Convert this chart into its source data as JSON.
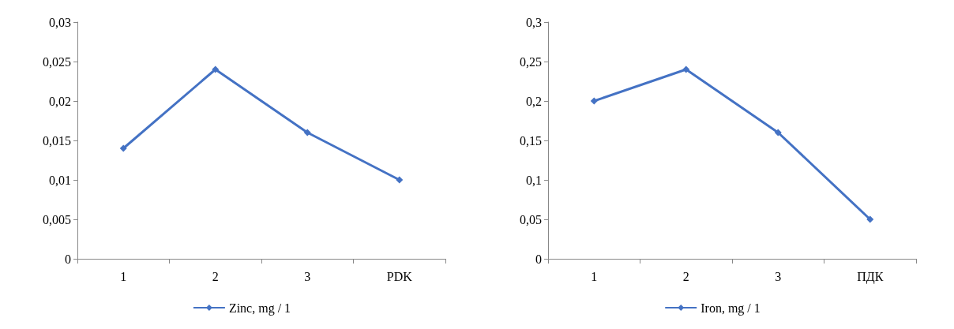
{
  "chart_data": [
    {
      "type": "line",
      "categories": [
        "1",
        "2",
        "3",
        "PDK"
      ],
      "series": [
        {
          "name": "Zinc, mg / 1",
          "color": "#4472c4",
          "values": [
            0.014,
            0.024,
            0.016,
            0.01
          ]
        }
      ],
      "ylim": [
        0,
        0.03
      ],
      "yticks": [
        0,
        {
          "value": 0.005,
          "label": "0,005"
        },
        {
          "value": 0.01,
          "label": "0,01"
        },
        {
          "value": 0.015,
          "label": "0,015"
        },
        {
          "value": 0.02,
          "label": "0,02"
        },
        {
          "value": 0.025,
          "label": "0,025"
        },
        {
          "value": 0.03,
          "label": "0,03"
        }
      ],
      "grid": false,
      "legend": "bottom",
      "marker": "diamond",
      "line_style": "solid"
    },
    {
      "type": "line",
      "categories": [
        "1",
        "2",
        "3",
        "ПДК"
      ],
      "series": [
        {
          "name": "Iron, mg / 1",
          "color": "#4472c4",
          "values": [
            0.2,
            0.24,
            0.16,
            0.05
          ]
        }
      ],
      "ylim": [
        0,
        0.3
      ],
      "yticks": [
        0,
        {
          "value": 0.05,
          "label": "0,05"
        },
        {
          "value": 0.1,
          "label": "0,1"
        },
        {
          "value": 0.15,
          "label": "0,15"
        },
        {
          "value": 0.2,
          "label": "0,2"
        },
        {
          "value": 0.25,
          "label": "0,25"
        },
        {
          "value": 0.3,
          "label": "0,3"
        }
      ],
      "grid": false,
      "legend": "bottom",
      "marker": "diamond",
      "line_style": "solid"
    }
  ]
}
